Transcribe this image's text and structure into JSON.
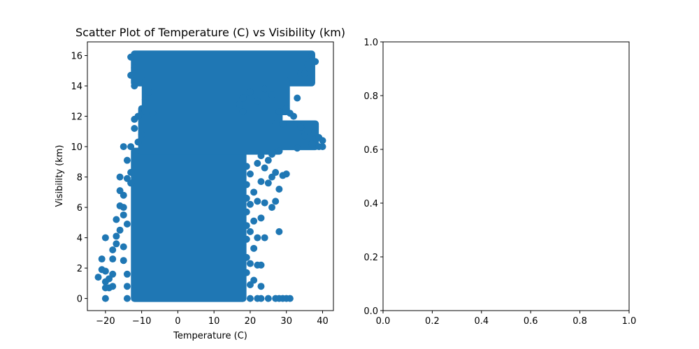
{
  "figure": {
    "background": "#ffffff"
  },
  "chart_data": [
    {
      "type": "scatter",
      "title": "Scatter Plot of Temperature (C) vs Visibility (km)",
      "xlabel": "Temperature (C)",
      "ylabel": "Visibility (km)",
      "xlim": [
        -25,
        43
      ],
      "ylim": [
        -0.8,
        16.9
      ],
      "xticks": [
        -20,
        -10,
        0,
        10,
        20,
        30,
        40
      ],
      "xtick_labels": [
        "−20",
        "−10",
        "0",
        "10",
        "20",
        "30",
        "40"
      ],
      "yticks": [
        0,
        2,
        4,
        6,
        8,
        10,
        12,
        14,
        16
      ],
      "ytick_labels": [
        "0",
        "2",
        "4",
        "6",
        "8",
        "10",
        "12",
        "14",
        "16"
      ],
      "color": "#1f77b4",
      "dense_regions": [
        {
          "x": [
            -12,
            18
          ],
          "y": [
            0,
            9.7
          ]
        },
        {
          "x": [
            -10,
            28
          ],
          "y": [
            9.7,
            12.5
          ]
        },
        {
          "x": [
            -12,
            37
          ],
          "y": [
            14.2,
            16.1
          ]
        },
        {
          "x": [
            -9,
            30
          ],
          "y": [
            12.3,
            14.3
          ]
        },
        {
          "x": [
            27,
            38
          ],
          "y": [
            10,
            11.5
          ]
        }
      ],
      "points": [
        {
          "x": -22,
          "y": 1.4
        },
        {
          "x": -21,
          "y": 1.9
        },
        {
          "x": -21,
          "y": 2.6
        },
        {
          "x": -20,
          "y": 1.8
        },
        {
          "x": -20,
          "y": 1.1
        },
        {
          "x": -20,
          "y": 0.7
        },
        {
          "x": -20,
          "y": 0.0
        },
        {
          "x": -20,
          "y": 4.0
        },
        {
          "x": -19,
          "y": 0.7
        },
        {
          "x": -19,
          "y": 1.3
        },
        {
          "x": -18,
          "y": 0.8
        },
        {
          "x": -18,
          "y": 1.6
        },
        {
          "x": -18,
          "y": 2.6
        },
        {
          "x": -18,
          "y": 3.2
        },
        {
          "x": -17,
          "y": 3.6
        },
        {
          "x": -17,
          "y": 4.1
        },
        {
          "x": -17,
          "y": 5.2
        },
        {
          "x": -16,
          "y": 4.5
        },
        {
          "x": -16,
          "y": 6.1
        },
        {
          "x": -16,
          "y": 7.1
        },
        {
          "x": -16,
          "y": 8.0
        },
        {
          "x": -15,
          "y": 6.8
        },
        {
          "x": -15,
          "y": 6.0
        },
        {
          "x": -15,
          "y": 5.5
        },
        {
          "x": -15,
          "y": 3.4
        },
        {
          "x": -15,
          "y": 2.5
        },
        {
          "x": -15,
          "y": 10.0
        },
        {
          "x": -14,
          "y": 7.9
        },
        {
          "x": -14,
          "y": 9.1
        },
        {
          "x": -14,
          "y": 4.9
        },
        {
          "x": -14,
          "y": 0.0
        },
        {
          "x": -14,
          "y": 0.8
        },
        {
          "x": -14,
          "y": 1.6
        },
        {
          "x": -13,
          "y": 7.6
        },
        {
          "x": -13,
          "y": 8.3
        },
        {
          "x": -13,
          "y": 10.0
        },
        {
          "x": -13,
          "y": 15.9
        },
        {
          "x": -13,
          "y": 14.7
        },
        {
          "x": -12,
          "y": 15.2
        },
        {
          "x": -12,
          "y": 11.2
        },
        {
          "x": -12,
          "y": 11.8
        },
        {
          "x": -12,
          "y": 14.0
        },
        {
          "x": -11,
          "y": 12.0
        },
        {
          "x": -11,
          "y": 10.3
        },
        {
          "x": -10,
          "y": 10.8
        },
        {
          "x": -9,
          "y": 13.1
        },
        {
          "x": -8,
          "y": 13.6
        },
        {
          "x": -7,
          "y": 12.2
        },
        {
          "x": 17,
          "y": 12.8
        },
        {
          "x": 18,
          "y": 12.3
        },
        {
          "x": 19,
          "y": 8.7
        },
        {
          "x": 19,
          "y": 7.5
        },
        {
          "x": 19,
          "y": 6.6
        },
        {
          "x": 19,
          "y": 5.7
        },
        {
          "x": 19,
          "y": 4.8
        },
        {
          "x": 19,
          "y": 3.9
        },
        {
          "x": 19,
          "y": 2.7
        },
        {
          "x": 19,
          "y": 1.7
        },
        {
          "x": 20,
          "y": 0.9
        },
        {
          "x": 20,
          "y": 0.0
        },
        {
          "x": 20,
          "y": 2.3
        },
        {
          "x": 20,
          "y": 4.4
        },
        {
          "x": 20,
          "y": 6.2
        },
        {
          "x": 20,
          "y": 8.2
        },
        {
          "x": 21,
          "y": 7.0
        },
        {
          "x": 21,
          "y": 5.1
        },
        {
          "x": 21,
          "y": 3.3
        },
        {
          "x": 21,
          "y": 1.2
        },
        {
          "x": 22,
          "y": 0.0
        },
        {
          "x": 22,
          "y": 2.2
        },
        {
          "x": 22,
          "y": 4.0
        },
        {
          "x": 22,
          "y": 6.4
        },
        {
          "x": 22,
          "y": 8.9
        },
        {
          "x": 23,
          "y": 2.2
        },
        {
          "x": 23,
          "y": 0.8
        },
        {
          "x": 23,
          "y": 0.0
        },
        {
          "x": 23,
          "y": 5.3
        },
        {
          "x": 23,
          "y": 7.7
        },
        {
          "x": 23,
          "y": 9.4
        },
        {
          "x": 24,
          "y": 4.0
        },
        {
          "x": 24,
          "y": 6.3
        },
        {
          "x": 24,
          "y": 8.6
        },
        {
          "x": 25,
          "y": 7.6
        },
        {
          "x": 25,
          "y": 9.1
        },
        {
          "x": 25,
          "y": 0.0
        },
        {
          "x": 26,
          "y": 6.0
        },
        {
          "x": 26,
          "y": 8.0
        },
        {
          "x": 26,
          "y": 9.5
        },
        {
          "x": 27,
          "y": 0.0
        },
        {
          "x": 27,
          "y": 6.4
        },
        {
          "x": 27,
          "y": 8.3
        },
        {
          "x": 28,
          "y": 0.0
        },
        {
          "x": 28,
          "y": 4.4
        },
        {
          "x": 28,
          "y": 7.2
        },
        {
          "x": 28,
          "y": 9.7
        },
        {
          "x": 29,
          "y": 0.0
        },
        {
          "x": 29,
          "y": 8.1
        },
        {
          "x": 30,
          "y": 0.0
        },
        {
          "x": 30,
          "y": 8.2
        },
        {
          "x": 30,
          "y": 12.5
        },
        {
          "x": 31,
          "y": 0.0
        },
        {
          "x": 31,
          "y": 12.2
        },
        {
          "x": 33,
          "y": 13.2
        },
        {
          "x": 34,
          "y": 14.8
        },
        {
          "x": 35,
          "y": 14.8
        },
        {
          "x": 36,
          "y": 15.4
        },
        {
          "x": 37,
          "y": 16.0
        },
        {
          "x": 38,
          "y": 15.6
        },
        {
          "x": 38,
          "y": 11.3
        },
        {
          "x": 38,
          "y": 10.5
        },
        {
          "x": 39,
          "y": 10.0
        },
        {
          "x": 39,
          "y": 10.6
        },
        {
          "x": 40,
          "y": 10.0
        },
        {
          "x": 40,
          "y": 10.4
        },
        {
          "x": 37,
          "y": 10.2
        },
        {
          "x": 36,
          "y": 11.0
        },
        {
          "x": 35,
          "y": 10.7
        },
        {
          "x": 34,
          "y": 11.3
        },
        {
          "x": 33,
          "y": 9.9
        },
        {
          "x": 32,
          "y": 12.0
        },
        {
          "x": 29,
          "y": 11.5
        },
        {
          "x": 28,
          "y": 12.3
        },
        {
          "x": 26,
          "y": 13.4
        },
        {
          "x": 24,
          "y": 13.8
        },
        {
          "x": 22,
          "y": 13.0
        },
        {
          "x": 20,
          "y": 13.6
        },
        {
          "x": 18,
          "y": 13.2
        }
      ]
    },
    {
      "type": "scatter",
      "title": "",
      "xlabel": "",
      "ylabel": "",
      "xlim": [
        0,
        1
      ],
      "ylim": [
        0,
        1
      ],
      "xticks": [
        0.0,
        0.2,
        0.4,
        0.6,
        0.8,
        1.0
      ],
      "xtick_labels": [
        "0.0",
        "0.2",
        "0.4",
        "0.6",
        "0.8",
        "1.0"
      ],
      "yticks": [
        0.0,
        0.2,
        0.4,
        0.6,
        0.8,
        1.0
      ],
      "ytick_labels": [
        "0.0",
        "0.2",
        "0.4",
        "0.6",
        "0.8",
        "1.0"
      ],
      "points": []
    }
  ]
}
